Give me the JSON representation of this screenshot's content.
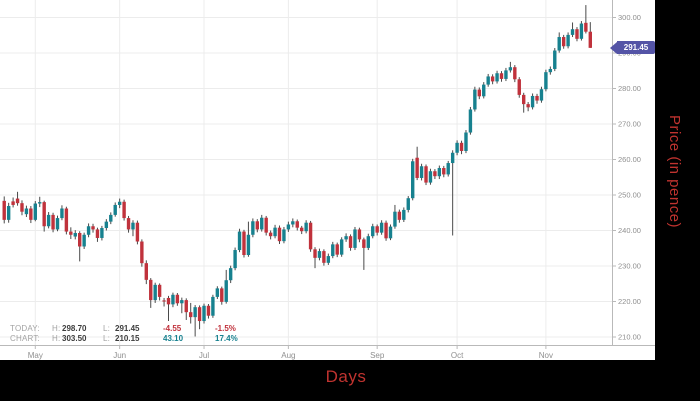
{
  "titles": {
    "x_axis": "Days",
    "y_axis": "Price (in pence)",
    "color": "#c0332f"
  },
  "price_tag": {
    "value": "291.45",
    "bg": "#5454a6",
    "text_color": "#ffffff"
  },
  "legend": {
    "rows": [
      {
        "name": "TODAY:",
        "h_label": "H:",
        "high": "298.70",
        "l_label": "L:",
        "low": "291.45",
        "change": "-4.55",
        "change_pct": "-1.5%",
        "color": "#c0323c"
      },
      {
        "name": "CHART:",
        "h_label": "H:",
        "high": "303.50",
        "l_label": "L:",
        "low": "210.15",
        "change": "43.10",
        "change_pct": "17.4%",
        "color": "#17818f"
      }
    ]
  },
  "chart_data": {
    "type": "candlestick",
    "xlabel": "Days",
    "ylabel": "Price (in pence)",
    "x_tick_labels": [
      "May",
      "Jun",
      "Jul",
      "Aug",
      "Sep",
      "Oct",
      "Nov"
    ],
    "month_start_indices": [
      8,
      27,
      46,
      65,
      85,
      103,
      123
    ],
    "y_ticks": [
      210,
      220,
      230,
      240,
      250,
      260,
      270,
      280,
      290,
      300
    ],
    "ylim": [
      207.75,
      304.93
    ],
    "grid": true,
    "up_color": "#17818f",
    "down_color": "#c0323c",
    "wick_color": "#4a4a4a",
    "grid_color": "#ececec",
    "axis_color": "#b9b9b9",
    "tick_label_color": "#8f8f8f",
    "last_price": 291.45,
    "today": {
      "high": 298.7,
      "low": 291.45,
      "change": -4.55,
      "change_pct": "-1.5%"
    },
    "overall": {
      "high": 303.5,
      "low": 210.15,
      "change": 43.1,
      "change_pct": "17.4%"
    },
    "ohlc": [
      [
        248.35,
        249.6,
        242.0,
        243.0
      ],
      [
        243.0,
        247.8,
        242.2,
        246.9
      ],
      [
        248.2,
        249.3,
        246.5,
        247.2
      ],
      [
        249.0,
        250.9,
        247.0,
        247.7
      ],
      [
        247.7,
        248.5,
        244.3,
        245.3
      ],
      [
        244.6,
        247.0,
        243.8,
        246.2
      ],
      [
        246.2,
        246.9,
        242.1,
        243.0
      ],
      [
        243.0,
        248.3,
        242.6,
        247.6
      ],
      [
        247.6,
        249.5,
        246.6,
        248.0
      ],
      [
        248.0,
        248.4,
        239.7,
        241.2
      ],
      [
        241.2,
        245.2,
        240.6,
        244.4
      ],
      [
        244.4,
        245.0,
        239.5,
        240.3
      ],
      [
        240.3,
        244.2,
        239.8,
        243.5
      ],
      [
        243.5,
        247.1,
        242.9,
        246.2
      ],
      [
        246.2,
        246.7,
        238.9,
        239.7
      ],
      [
        239.7,
        240.9,
        237.6,
        238.8
      ],
      [
        238.3,
        240.1,
        237.5,
        239.3
      ],
      [
        239.3,
        239.8,
        231.3,
        235.5
      ],
      [
        235.5,
        239.4,
        234.8,
        238.8
      ],
      [
        238.8,
        242.0,
        238.1,
        241.2
      ],
      [
        241.2,
        241.9,
        239.4,
        240.3
      ],
      [
        240.3,
        240.8,
        236.8,
        237.9
      ],
      [
        237.9,
        241.3,
        237.2,
        240.7
      ],
      [
        240.7,
        243.2,
        240.0,
        242.5
      ],
      [
        242.5,
        245.1,
        241.8,
        244.4
      ],
      [
        244.4,
        247.9,
        243.9,
        247.2
      ],
      [
        247.2,
        249.0,
        246.3,
        248.1
      ],
      [
        248.1,
        248.7,
        242.8,
        243.5
      ],
      [
        243.5,
        244.1,
        239.4,
        240.3
      ],
      [
        240.3,
        242.9,
        238.4,
        242.2
      ],
      [
        242.2,
        242.8,
        236.1,
        236.9
      ],
      [
        236.9,
        237.5,
        229.8,
        230.8
      ],
      [
        230.8,
        231.6,
        224.9,
        226.1
      ],
      [
        226.1,
        226.6,
        218.2,
        220.4
      ],
      [
        220.4,
        225.3,
        219.6,
        224.7
      ],
      [
        224.7,
        225.1,
        220.3,
        221.3
      ],
      [
        220.3,
        221.0,
        218.6,
        220.0
      ],
      [
        221.0,
        221.6,
        214.5,
        219.2
      ],
      [
        219.2,
        222.5,
        218.4,
        221.9
      ],
      [
        221.9,
        222.4,
        218.8,
        219.5
      ],
      [
        219.5,
        221.1,
        216.7,
        220.4
      ],
      [
        220.4,
        220.9,
        214.8,
        217.0
      ],
      [
        217.0,
        219.6,
        213.8,
        215.6
      ],
      [
        215.6,
        219.0,
        210.15,
        218.4
      ],
      [
        218.4,
        218.9,
        212.2,
        214.5
      ],
      [
        214.5,
        219.4,
        213.8,
        218.8
      ],
      [
        218.8,
        219.3,
        215.2,
        216.0
      ],
      [
        216.0,
        221.9,
        215.4,
        221.3
      ],
      [
        221.3,
        224.3,
        220.7,
        223.7
      ],
      [
        223.7,
        224.2,
        219.1,
        219.9
      ],
      [
        219.9,
        228.9,
        219.4,
        226.0
      ],
      [
        226.0,
        230.1,
        225.2,
        229.4
      ],
      [
        229.4,
        235.2,
        228.8,
        234.5
      ],
      [
        234.5,
        240.5,
        233.9,
        239.7
      ],
      [
        239.7,
        240.2,
        232.4,
        233.1
      ],
      [
        233.1,
        242.5,
        232.6,
        238.8
      ],
      [
        238.8,
        243.4,
        238.1,
        242.6
      ],
      [
        242.6,
        243.2,
        239.5,
        240.3
      ],
      [
        240.3,
        244.4,
        239.7,
        243.6
      ],
      [
        243.6,
        244.1,
        238.6,
        239.4
      ],
      [
        239.4,
        240.0,
        237.5,
        238.4
      ],
      [
        238.4,
        241.6,
        237.8,
        240.8
      ],
      [
        240.8,
        241.4,
        236.2,
        237.0
      ],
      [
        237.0,
        241.0,
        236.4,
        240.3
      ],
      [
        240.3,
        242.5,
        239.6,
        241.7
      ],
      [
        241.7,
        243.4,
        240.9,
        242.6
      ],
      [
        242.6,
        243.1,
        240.0,
        240.8
      ],
      [
        240.8,
        241.3,
        239.0,
        239.8
      ],
      [
        239.8,
        242.9,
        239.2,
        242.2
      ],
      [
        242.2,
        242.7,
        234.0,
        234.7
      ],
      [
        234.7,
        235.3,
        229.4,
        232.3
      ],
      [
        232.3,
        234.9,
        231.6,
        234.2
      ],
      [
        234.2,
        234.7,
        230.1,
        230.9
      ],
      [
        230.9,
        233.5,
        230.3,
        232.8
      ],
      [
        232.8,
        236.8,
        232.2,
        236.1
      ],
      [
        236.1,
        236.6,
        232.5,
        233.2
      ],
      [
        233.2,
        238.1,
        232.6,
        237.5
      ],
      [
        237.5,
        239.2,
        236.8,
        238.4
      ],
      [
        238.4,
        238.9,
        234.3,
        235.1
      ],
      [
        235.1,
        241.0,
        234.5,
        240.3
      ],
      [
        240.3,
        240.8,
        236.7,
        237.5
      ],
      [
        237.5,
        238.0,
        228.9,
        235.1
      ],
      [
        235.1,
        239.1,
        234.5,
        238.4
      ],
      [
        238.4,
        241.9,
        237.8,
        241.2
      ],
      [
        241.2,
        241.7,
        238.6,
        239.4
      ],
      [
        239.4,
        242.9,
        238.8,
        242.2
      ],
      [
        242.2,
        242.8,
        237.1,
        237.8
      ],
      [
        237.8,
        241.7,
        237.3,
        241.1
      ],
      [
        241.1,
        247.2,
        240.5,
        245.3
      ],
      [
        245.3,
        245.9,
        242.2,
        243.0
      ],
      [
        243.0,
        246.5,
        242.4,
        245.8
      ],
      [
        245.8,
        249.7,
        245.1,
        249.1
      ],
      [
        249.1,
        260.2,
        248.5,
        259.5
      ],
      [
        260.5,
        263.6,
        254.2,
        254.8
      ],
      [
        254.8,
        258.8,
        254.1,
        258.1
      ],
      [
        258.1,
        258.6,
        252.8,
        253.5
      ],
      [
        253.5,
        257.4,
        252.9,
        256.7
      ],
      [
        256.7,
        257.3,
        254.5,
        255.3
      ],
      [
        255.3,
        258.3,
        254.5,
        257.6
      ],
      [
        257.6,
        258.2,
        255.0,
        255.8
      ],
      [
        255.8,
        259.6,
        255.2,
        259.0
      ],
      [
        259.0,
        262.6,
        238.6,
        261.9
      ],
      [
        261.9,
        265.4,
        261.2,
        264.7
      ],
      [
        264.7,
        265.3,
        261.5,
        262.4
      ],
      [
        262.4,
        268.3,
        261.8,
        267.6
      ],
      [
        267.6,
        274.8,
        267.0,
        274.1
      ],
      [
        274.1,
        280.5,
        273.5,
        279.7
      ],
      [
        279.7,
        280.3,
        277.0,
        277.8
      ],
      [
        277.8,
        281.8,
        277.2,
        281.1
      ],
      [
        281.1,
        284.1,
        280.5,
        283.4
      ],
      [
        283.4,
        284.0,
        281.2,
        282.0
      ],
      [
        282.0,
        285.0,
        281.4,
        284.3
      ],
      [
        284.3,
        284.9,
        281.9,
        282.7
      ],
      [
        282.7,
        285.8,
        282.1,
        285.1
      ],
      [
        285.1,
        287.5,
        284.5,
        286.0
      ],
      [
        286.0,
        286.6,
        281.8,
        282.6
      ],
      [
        282.6,
        283.2,
        277.4,
        278.2
      ],
      [
        278.2,
        278.8,
        273.2,
        275.6
      ],
      [
        275.6,
        276.2,
        273.6,
        274.7
      ],
      [
        274.7,
        278.6,
        274.1,
        277.9
      ],
      [
        277.9,
        278.5,
        275.7,
        276.6
      ],
      [
        276.6,
        280.5,
        276.0,
        279.8
      ],
      [
        279.8,
        285.3,
        279.2,
        284.6
      ],
      [
        284.6,
        286.2,
        283.9,
        285.5
      ],
      [
        285.5,
        291.4,
        284.9,
        290.7
      ],
      [
        290.7,
        295.8,
        290.1,
        294.5
      ],
      [
        294.5,
        295.1,
        291.2,
        291.9
      ],
      [
        291.9,
        295.8,
        291.3,
        295.1
      ],
      [
        295.1,
        298.6,
        294.5,
        296.7
      ],
      [
        296.7,
        297.3,
        293.3,
        294.0
      ],
      [
        294.0,
        299.0,
        293.5,
        298.3
      ],
      [
        298.5,
        303.5,
        295.5,
        296.0
      ],
      [
        296.0,
        298.7,
        291.45,
        291.45
      ]
    ]
  }
}
